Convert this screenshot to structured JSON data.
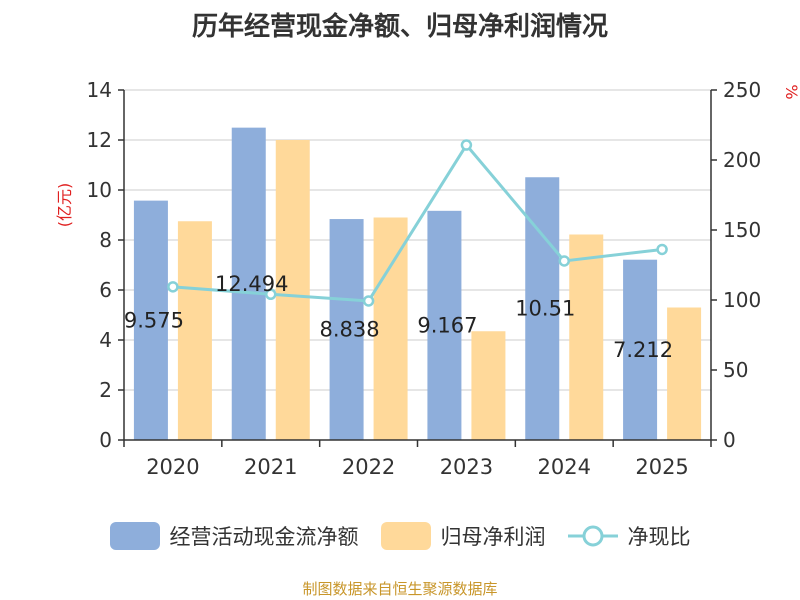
{
  "chart_data": {
    "type": "bar",
    "title": "历年经营现金净额、归母净利润情况",
    "categories": [
      "2020",
      "2021",
      "2022",
      "2023",
      "2024",
      "2025"
    ],
    "series": [
      {
        "name": "经营活动现金流净额",
        "type": "bar",
        "axis": "left",
        "color": "#8eaedb",
        "values": [
          9.575,
          12.494,
          8.838,
          9.167,
          10.51,
          7.212
        ],
        "labels": [
          "9.575",
          "12.494",
          "8.838",
          "9.167",
          "10.51",
          "7.212"
        ]
      },
      {
        "name": "归母净利润",
        "type": "bar",
        "axis": "left",
        "color": "#ffd99a",
        "values": [
          8.75,
          12.0,
          8.9,
          4.35,
          8.22,
          5.3
        ]
      },
      {
        "name": "净现比",
        "type": "line",
        "axis": "right",
        "color": "#86d1d8",
        "values": [
          109.4,
          104.1,
          99.3,
          210.7,
          127.9,
          136.1
        ]
      }
    ],
    "y_left": {
      "label": "(亿元)",
      "min": 0,
      "max": 14,
      "ticks": [
        0,
        2,
        4,
        6,
        8,
        10,
        12,
        14
      ]
    },
    "y_right": {
      "label": "%",
      "min": 0,
      "max": 250,
      "ticks": [
        0,
        50,
        100,
        150,
        200,
        250
      ]
    },
    "grid": true,
    "legend_position": "bottom"
  },
  "source": "制图数据来自恒生聚源数据库"
}
